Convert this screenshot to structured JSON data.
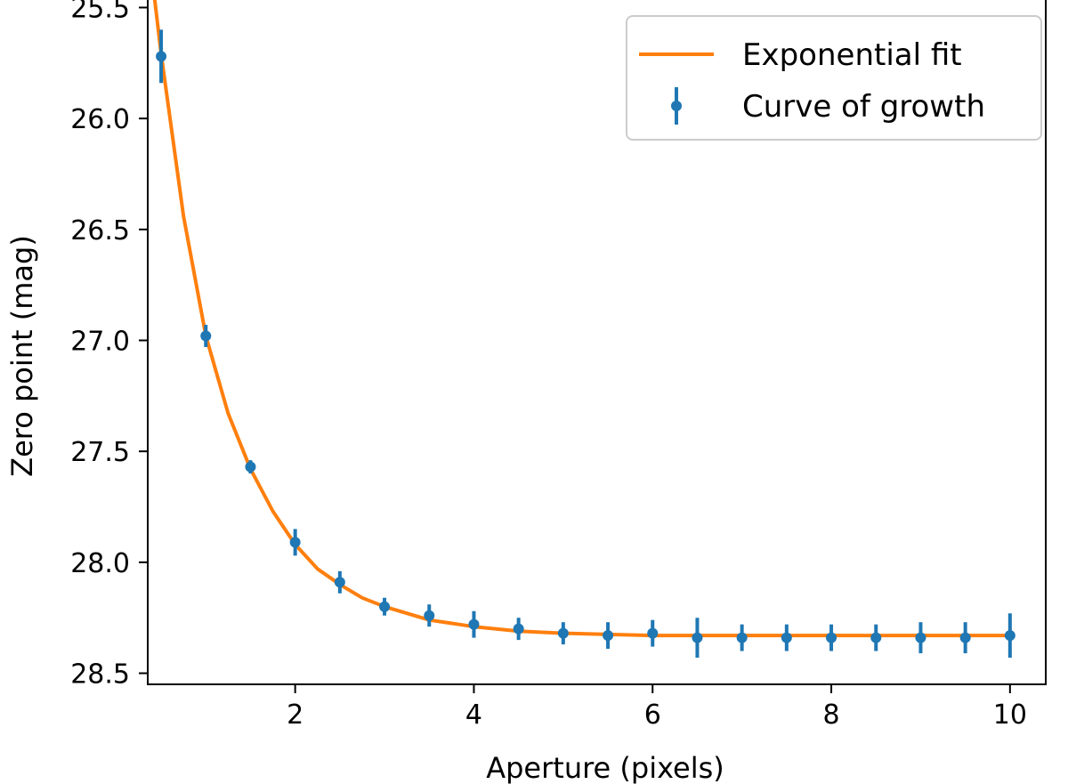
{
  "chart_data": {
    "type": "scatter",
    "title": "",
    "xlabel": "Aperture (pixels)",
    "ylabel": "Zero point (mag)",
    "xlim": [
      0.35,
      10.4
    ],
    "ylim": [
      28.55,
      25.45
    ],
    "y_inverted": true,
    "x_ticks": [
      2,
      4,
      6,
      8,
      10
    ],
    "x_tick_labels": [
      "2",
      "4",
      "6",
      "8",
      "10"
    ],
    "y_ticks": [
      25.5,
      26.0,
      26.5,
      27.0,
      27.5,
      28.0,
      28.5
    ],
    "y_tick_labels": [
      "25.5",
      "26.0",
      "26.5",
      "27.0",
      "27.5",
      "28.0",
      "28.5"
    ],
    "grid": false,
    "legend_position": "top-right",
    "series": [
      {
        "name": "Exponential fit",
        "kind": "line",
        "color": "#ff7f0e",
        "x": [
          0.35,
          0.5,
          0.75,
          1.0,
          1.25,
          1.5,
          1.75,
          2.0,
          2.25,
          2.5,
          2.75,
          3.0,
          3.5,
          4.0,
          4.5,
          5.0,
          5.5,
          6.0,
          7.0,
          8.0,
          9.0,
          10.0
        ],
        "y": [
          25.2,
          25.71,
          26.44,
          26.98,
          27.33,
          27.58,
          27.77,
          27.92,
          28.03,
          28.1,
          28.16,
          28.2,
          28.26,
          28.29,
          28.31,
          28.32,
          28.325,
          28.33,
          28.33,
          28.33,
          28.33,
          28.33
        ]
      },
      {
        "name": "Curve of growth",
        "kind": "errorbar",
        "color": "#1f77b4",
        "x": [
          0.5,
          1.0,
          1.5,
          2.0,
          2.5,
          3.0,
          3.5,
          4.0,
          4.5,
          5.0,
          5.5,
          6.0,
          6.5,
          7.0,
          7.5,
          8.0,
          8.5,
          9.0,
          9.5,
          10.0
        ],
        "y": [
          25.72,
          26.98,
          27.57,
          27.91,
          28.09,
          28.2,
          28.24,
          28.28,
          28.3,
          28.32,
          28.33,
          28.32,
          28.34,
          28.34,
          28.34,
          28.34,
          28.34,
          28.34,
          28.34,
          28.33
        ],
        "yerr": [
          0.12,
          0.05,
          0.03,
          0.06,
          0.05,
          0.04,
          0.05,
          0.06,
          0.05,
          0.05,
          0.06,
          0.06,
          0.09,
          0.06,
          0.06,
          0.06,
          0.06,
          0.07,
          0.07,
          0.1
        ]
      }
    ]
  }
}
